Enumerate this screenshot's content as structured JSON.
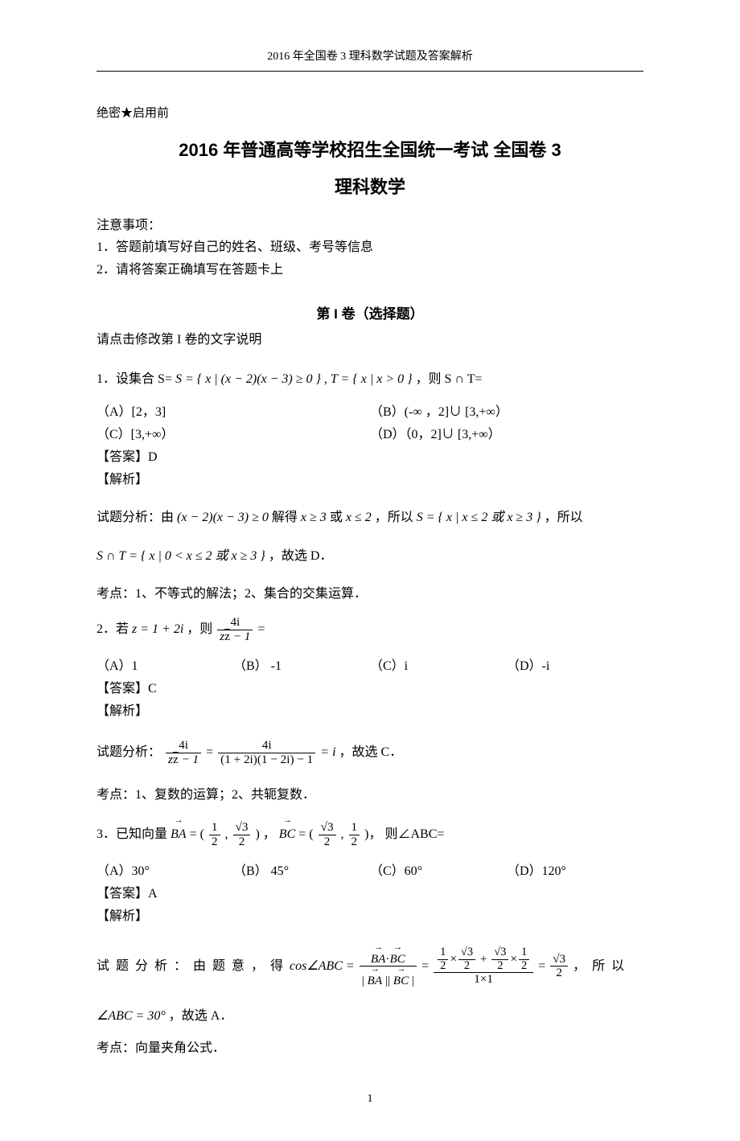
{
  "running_head": "2016 年全国卷 3 理科数学试题及答案解析",
  "secrecy": "绝密★启用前",
  "title_main": "2016 年普通高等学校招生全国统一考试  全国卷 3",
  "title_sub": "理科数学",
  "notes": {
    "heading": "注意事项：",
    "line1": "1．答题前填写好自己的姓名、班级、考号等信息",
    "line2": "2．请将答案正确填写在答题卡上"
  },
  "section1_heading": "第 I 卷（选择题）",
  "section1_instr": "请点击修改第 I 卷的文字说明",
  "q1": {
    "stem_pre": "1．设集合 S= ",
    "stem_math": "S = { x | (x − 2)(x − 3) ≥ 0 } , T = { x | x > 0 }",
    "stem_post": " ，则 S ∩ T=",
    "optA": "（A）[2，3]",
    "optB": "（B）(-∞ ，2]∪ [3,+∞）",
    "optC": "（C）[3,+∞）",
    "optD": "（D）（0，2]∪ [3,+∞）",
    "answer_label": "【答案】",
    "answer": "D",
    "analysis_label": "【解析】",
    "analysis_line1_pre": "试题分析：由 ",
    "analysis_line1_m1": "(x − 2)(x − 3) ≥ 0",
    "analysis_line1_mid1": " 解得 ",
    "analysis_line1_m2": "x ≥ 3",
    "analysis_line1_mid2": " 或 ",
    "analysis_line1_m3": "x ≤ 2",
    "analysis_line1_mid3": "，所以 ",
    "analysis_line1_m4": "S = { x | x ≤ 2 或 x ≥ 3 }",
    "analysis_line1_post": "，所以",
    "analysis_line2_m": "S ∩ T = { x | 0 < x ≤ 2 或 x ≥ 3 }",
    "analysis_line2_post": "，故选 D．",
    "kaodian": "考点：1、不等式的解法；2、集合的交集运算．"
  },
  "q2": {
    "stem_pre": "2．若 ",
    "stem_m1": "z = 1 + 2i",
    "stem_mid": "，则 ",
    "frac_num": "4i",
    "frac_den_pre": "z",
    "frac_den_bar": "z",
    "frac_den_post": " − 1",
    "stem_post": " =",
    "optA": "（A）1",
    "optB": "（B） -1",
    "optC": "（C）i",
    "optD": "（D）-i",
    "answer_label": "【答案】",
    "answer": "C",
    "analysis_label": "【解析】",
    "analysis_pre": "试题分析：",
    "ana_frac1_num": "4i",
    "ana_frac1_den_pre": "z",
    "ana_frac1_den_bar": "z",
    "ana_frac1_den_post": " − 1",
    "ana_eq": " = ",
    "ana_frac2_num": "4i",
    "ana_frac2_den": "(1 + 2i)(1 − 2i) − 1",
    "ana_result": " = i",
    "analysis_post": "，故选 C．",
    "kaodian": "考点：1、复数的运算；2、共轭复数．"
  },
  "q3": {
    "stem_pre": "3．已知向量 ",
    "vec_BA": "BA",
    "eq_BA_pre": " = (",
    "ba_x_num": "1",
    "ba_x_den": "2",
    "comma": " , ",
    "ba_y_num": "√3",
    "ba_y_den": "2",
    "eq_BA_post": ")",
    "sep": " ，",
    "vec_BC": "BC",
    "eq_BC_pre": " = (",
    "bc_x_num": "√3",
    "bc_x_den": "2",
    "bc_y_num": "1",
    "bc_y_den": "2",
    "eq_BC_post": ")，",
    "stem_post": " 则∠ABC=",
    "optA": "（A）30°",
    "optB": "（B） 45°",
    "optC": "（C）60°",
    "optD": "（D）120°",
    "answer_label": "【答案】",
    "answer": "A",
    "analysis_label": "【解析】",
    "analysis_pre": "试 题 分 析 ： 由 题 意 ， 得 ",
    "cos_lhs": "cos∠ABC = ",
    "big_num_vec1": "BA",
    "big_num_dot": "·",
    "big_num_vec2": "BC",
    "big_den_l": "| ",
    "big_den_vec1": "BA",
    "big_den_mid": " || ",
    "big_den_vec2": "BC",
    "big_den_r": " |",
    "eq": " = ",
    "t1_a_num": "1",
    "t1_a_den": "2",
    "times": "×",
    "t1_b_num": "√3",
    "t1_b_den": "2",
    "plus": " + ",
    "t2_a_num": "√3",
    "t2_a_den": "2",
    "t2_b_num": "1",
    "t2_b_den": "2",
    "den2": "1×1",
    "res_num": "√3",
    "res_den": "2",
    "analysis_post": "， 所 以",
    "analysis_line2_m": "∠ABC = 30°",
    "analysis_line2_post": "，故选 A．",
    "kaodian": "考点：向量夹角公式．"
  },
  "page_number": "1"
}
